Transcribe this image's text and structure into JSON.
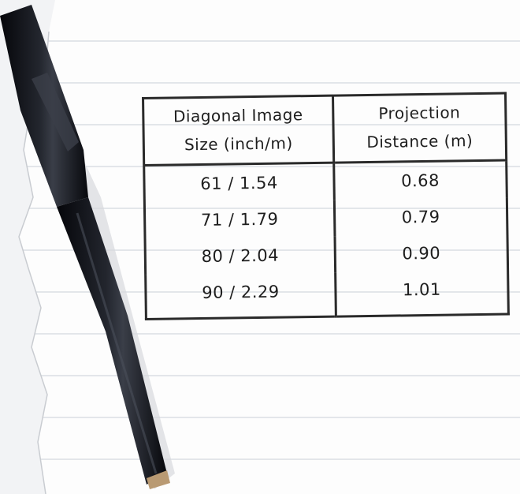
{
  "table": {
    "headers": [
      "Diagonal Image\nSize (inch/m)",
      "Projection\nDistance (m)"
    ],
    "header_lines": [
      [
        "Diagonal Image",
        "Size (inch/m)"
      ],
      [
        "Projection",
        "Distance (m)"
      ]
    ],
    "rows": [
      [
        "61 / 1.54",
        "0.68"
      ],
      [
        "71 / 1.79",
        "0.79"
      ],
      [
        "80 / 2.04",
        "0.90"
      ],
      [
        "90 / 2.29",
        "1.01"
      ]
    ]
  },
  "colors": {
    "ink": "#1e1e1e",
    "paper": "#fdfdfd",
    "ruled_line": "#e3e6ea",
    "pen_body": "#15171c"
  },
  "icons": {
    "pen": "marker-pen-icon"
  }
}
